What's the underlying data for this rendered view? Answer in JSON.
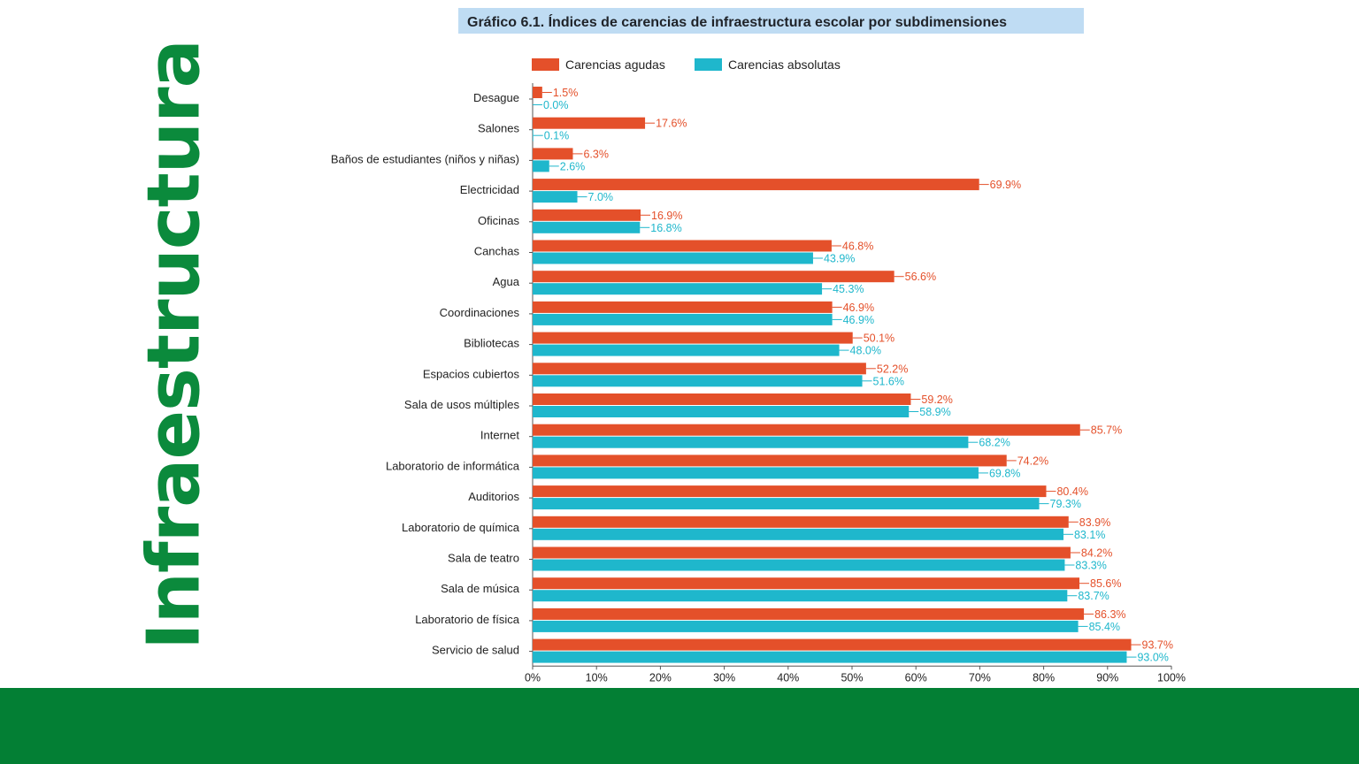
{
  "slide": {
    "side_title": "Infraestructura"
  },
  "colors": {
    "accent_green": "#0b8a3c",
    "footer_green": "#037f34",
    "title_box": "#bfdcf3",
    "series_agudas": "#e4502a",
    "series_absolutas": "#1fb7cc"
  },
  "chart_data": {
    "type": "bar",
    "orientation": "horizontal",
    "title": "Gráfico 6.1. Índices de carencias de infraestructura escolar por subdimensiones",
    "xlabel": "",
    "ylabel": "",
    "xlim": [
      0,
      100
    ],
    "legend_position": "top",
    "categories": [
      "Desague",
      "Salones",
      "Baños de estudiantes (niños y niñas)",
      "Electricidad",
      "Oficinas",
      "Canchas",
      "Agua",
      "Coordinaciones",
      "Bibliotecas",
      "Espacios cubiertos",
      "Sala de usos múltiples",
      "Internet",
      "Laboratorio de informática",
      "Auditorios",
      "Laboratorio de química",
      "Sala de teatro",
      "Sala de música",
      "Laboratorio de física",
      "Servicio de salud"
    ],
    "series": [
      {
        "name": "Carencias agudas",
        "color": "#e4502a",
        "values": [
          1.5,
          17.6,
          6.3,
          69.9,
          16.9,
          46.8,
          56.6,
          46.9,
          50.1,
          52.2,
          59.2,
          85.7,
          74.2,
          80.4,
          83.9,
          84.2,
          85.6,
          86.3,
          93.7
        ],
        "labels": [
          "1.5%",
          "17.6%",
          "6.3%",
          "69.9%",
          "16.9%",
          "46.8%",
          "56.6%",
          "46.9%",
          "50.1%",
          "52.2%",
          "59.2%",
          "85.7%",
          "74.2%",
          "80.4%",
          "83.9%",
          "84.2%",
          "85.6%",
          "86.3%",
          "93.7%"
        ]
      },
      {
        "name": "Carencias absolutas",
        "color": "#1fb7cc",
        "values": [
          0.0,
          0.1,
          2.6,
          7.0,
          16.8,
          43.9,
          45.3,
          46.9,
          48.0,
          51.6,
          58.9,
          68.2,
          69.8,
          79.3,
          83.1,
          83.3,
          83.7,
          85.4,
          93.0
        ],
        "labels": [
          "0.0%",
          "0.1%",
          "2.6%",
          "7.0%",
          "16.8%",
          "43.9%",
          "45.3%",
          "46.9%",
          "48.0%",
          "51.6%",
          "58.9%",
          "68.2%",
          "69.8%",
          "79.3%",
          "83.1%",
          "83.3%",
          "83.7%",
          "85.4%",
          "93.0%"
        ]
      }
    ],
    "ticks": [
      0,
      10,
      20,
      30,
      40,
      50,
      60,
      70,
      80,
      90,
      100
    ],
    "tick_labels": [
      "0%",
      "10%",
      "20%",
      "30%",
      "40%",
      "50%",
      "60%",
      "70%",
      "80%",
      "90%",
      "100%"
    ]
  }
}
